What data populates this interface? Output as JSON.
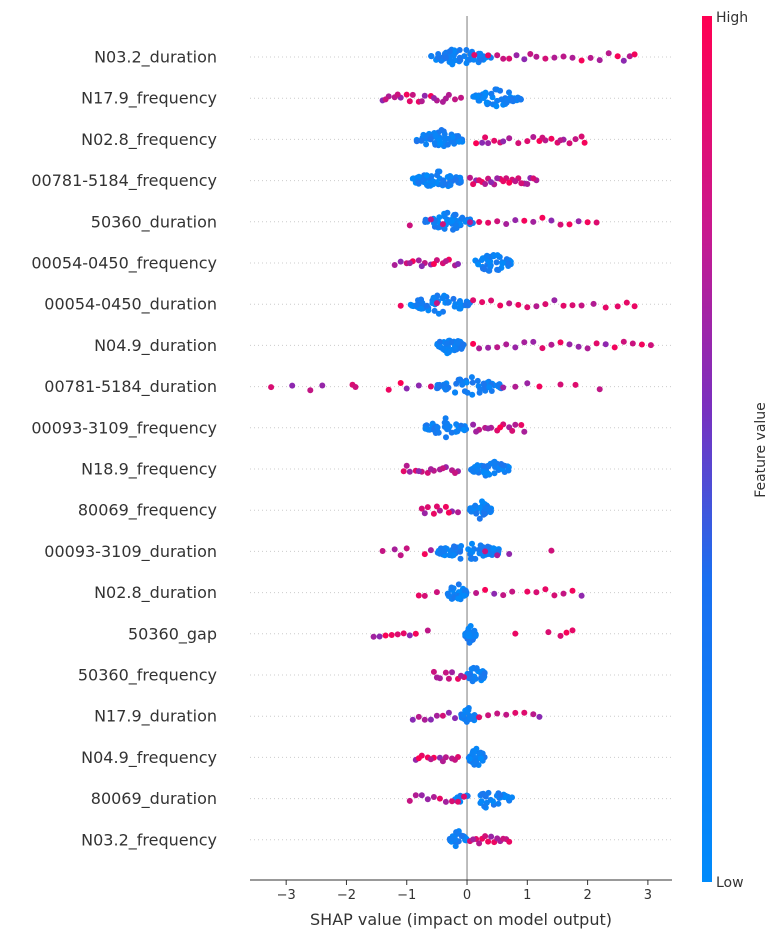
{
  "chart_data": {
    "type": "scatter",
    "subtype": "shap-beeswarm",
    "xlabel": "SHAP value (impact on model output)",
    "xlim": [
      -3.6,
      3.4
    ],
    "xticks": [
      -3,
      -2,
      -1,
      0,
      1,
      2,
      3
    ],
    "xtick_labels": [
      "−3",
      "−2",
      "−1",
      "0",
      "1",
      "2",
      "3"
    ],
    "grid": "horizontal dotted guides per feature",
    "colorbar": {
      "label": "Feature value",
      "high_label": "High",
      "low_label": "Low",
      "high_color": "#ff0052",
      "low_color": "#008bfb",
      "mid_color": "#7b2fbe"
    },
    "features": [
      {
        "name": "N03.2_duration",
        "low": {
          "min": -0.6,
          "max": 0.4,
          "n": 60
        },
        "high": [
          0.12,
          0.35,
          0.5,
          0.6,
          0.7,
          0.82,
          0.95,
          1.05,
          1.15,
          1.3,
          1.45,
          1.6,
          1.75,
          1.9,
          2.05,
          2.2,
          2.35,
          2.5,
          2.6,
          2.7,
          2.78
        ]
      },
      {
        "name": "N17.9_frequency",
        "low": {
          "min": 0.1,
          "max": 0.9,
          "n": 55
        },
        "high": [
          -1.4,
          -1.3,
          -1.2,
          -1.1,
          -1.0,
          -0.9,
          -0.8,
          -0.7,
          -0.6,
          -0.5,
          -0.4,
          -0.3,
          -0.2,
          -0.1,
          -1.35,
          -1.15,
          -0.95,
          -0.75,
          -0.55,
          -0.35
        ]
      },
      {
        "name": "N02.8_frequency",
        "low": {
          "min": -0.85,
          "max": -0.05,
          "n": 55
        },
        "high": [
          0.15,
          0.25,
          0.35,
          0.45,
          0.55,
          0.7,
          0.85,
          1.0,
          1.1,
          1.2,
          1.3,
          1.4,
          1.5,
          1.6,
          1.7,
          1.8,
          1.9,
          1.95,
          0.3,
          0.6,
          1.25,
          1.55
        ]
      },
      {
        "name": "00781-5184_frequency",
        "low": {
          "min": -0.9,
          "max": -0.05,
          "n": 60
        },
        "high": [
          0.05,
          0.15,
          0.25,
          0.35,
          0.45,
          0.55,
          0.65,
          0.75,
          0.85,
          0.95,
          1.05,
          1.15,
          0.1,
          0.3,
          0.5,
          0.7,
          0.9,
          1.1,
          0.2,
          0.4,
          0.6,
          0.8,
          1.0
        ]
      },
      {
        "name": "50360_duration",
        "low": {
          "min": -0.7,
          "max": 0.1,
          "n": 45
        },
        "high": [
          -0.95,
          -0.6,
          -0.4,
          0.05,
          0.2,
          0.35,
          0.5,
          0.65,
          0.8,
          0.95,
          1.1,
          1.25,
          1.4,
          1.55,
          1.7,
          1.85,
          2.0,
          2.15
        ]
      },
      {
        "name": "00054-0450_frequency",
        "low": {
          "min": 0.1,
          "max": 0.75,
          "n": 45
        },
        "high": [
          -1.2,
          -1.1,
          -1.0,
          -0.9,
          -0.8,
          -0.7,
          -0.6,
          -0.5,
          -0.4,
          -0.3,
          -0.2,
          -0.15,
          -0.95,
          -0.75,
          -0.55,
          -0.35
        ]
      },
      {
        "name": "00054-0450_duration",
        "low": {
          "min": -0.95,
          "max": 0.05,
          "n": 55
        },
        "high": [
          -1.1,
          -0.5,
          0.1,
          0.25,
          0.4,
          0.55,
          0.7,
          0.85,
          1.0,
          1.15,
          1.3,
          1.45,
          1.6,
          1.75,
          1.9,
          2.1,
          2.3,
          2.5,
          2.65,
          2.78
        ]
      },
      {
        "name": "N04.9_duration",
        "low": {
          "min": -0.5,
          "max": -0.05,
          "n": 40
        },
        "high": [
          0.1,
          0.2,
          0.35,
          0.5,
          0.65,
          0.8,
          0.95,
          1.1,
          1.25,
          1.4,
          1.55,
          1.7,
          1.85,
          2.0,
          2.15,
          2.3,
          2.45,
          2.6,
          2.75,
          2.9,
          3.05
        ]
      },
      {
        "name": "00781-5184_duration",
        "low": {
          "min": -0.5,
          "max": 0.6,
          "n": 55
        },
        "high": [
          -3.25,
          -2.9,
          -2.6,
          -2.4,
          -1.9,
          -1.85,
          -1.3,
          -1.1,
          -1.0,
          -0.8,
          -0.6,
          0.6,
          0.8,
          1.0,
          1.2,
          1.55,
          1.8,
          2.2
        ]
      },
      {
        "name": "00093-3109_frequency",
        "low": {
          "min": -0.7,
          "max": 0.0,
          "n": 40
        },
        "high": [
          0.1,
          0.2,
          0.3,
          0.4,
          0.5,
          0.6,
          0.7,
          0.8,
          0.9,
          0.95,
          0.15,
          0.35,
          0.55,
          0.75
        ]
      },
      {
        "name": "N18.9_frequency",
        "low": {
          "min": 0.05,
          "max": 0.7,
          "n": 45
        },
        "high": [
          -1.05,
          -0.95,
          -0.85,
          -0.75,
          -0.65,
          -0.55,
          -0.45,
          -0.35,
          -0.25,
          -0.15,
          -1.0,
          -0.8,
          -0.6,
          -0.4,
          -0.2
        ]
      },
      {
        "name": "80069_frequency",
        "low": {
          "min": 0.05,
          "max": 0.4,
          "n": 35
        },
        "high": [
          -0.75,
          -0.65,
          -0.55,
          -0.45,
          -0.35,
          -0.25,
          -0.15,
          -0.7,
          -0.5,
          -0.3
        ]
      },
      {
        "name": "00093-3109_duration",
        "low": {
          "min": -0.5,
          "max": 0.55,
          "n": 65
        },
        "high": [
          -1.4,
          -1.2,
          -1.1,
          -1.0,
          -0.7,
          -0.6,
          0.3,
          0.5,
          0.7,
          1.4
        ]
      },
      {
        "name": "N02.8_duration",
        "low": {
          "min": -0.35,
          "max": 0.0,
          "n": 30
        },
        "high": [
          -0.8,
          -0.7,
          -0.5,
          0.15,
          0.3,
          0.45,
          0.6,
          0.75,
          1.0,
          1.15,
          1.3,
          1.45,
          1.6,
          1.75,
          1.9
        ]
      },
      {
        "name": "50360_gap",
        "low": {
          "min": -0.05,
          "max": 0.15,
          "n": 28
        },
        "high": [
          -1.55,
          -1.45,
          -1.35,
          -1.25,
          -1.15,
          -1.05,
          -0.95,
          -0.85,
          -0.65,
          0.8,
          1.35,
          1.55,
          1.65,
          1.75
        ]
      },
      {
        "name": "50360_frequency",
        "low": {
          "min": 0.0,
          "max": 0.3,
          "n": 30
        },
        "high": [
          -0.55,
          -0.45,
          -0.35,
          -0.25,
          -0.15,
          -0.05,
          -0.5,
          -0.3,
          -0.1
        ]
      },
      {
        "name": "N17.9_duration",
        "low": {
          "min": -0.1,
          "max": 0.15,
          "n": 25
        },
        "high": [
          -0.9,
          -0.8,
          -0.7,
          -0.6,
          -0.5,
          -0.4,
          -0.3,
          -0.2,
          0.2,
          0.35,
          0.5,
          0.65,
          0.8,
          0.95,
          1.1,
          1.2
        ]
      },
      {
        "name": "N04.9_frequency",
        "low": {
          "min": 0.0,
          "max": 0.3,
          "n": 30
        },
        "high": [
          -0.85,
          -0.75,
          -0.65,
          -0.55,
          -0.45,
          -0.35,
          -0.25,
          -0.15,
          -0.8,
          -0.6,
          -0.4,
          -0.2
        ]
      },
      {
        "name": "80069_duration",
        "low": {
          "min": -0.2,
          "max": 0.75,
          "n": 40
        },
        "high": [
          -0.95,
          -0.85,
          -0.75,
          -0.65,
          -0.55,
          -0.45,
          -0.35,
          -0.25,
          -0.15,
          -0.05
        ]
      },
      {
        "name": "N03.2_frequency",
        "low": {
          "min": -0.3,
          "max": 0.0,
          "n": 30
        },
        "high": [
          0.05,
          0.15,
          0.25,
          0.35,
          0.45,
          0.55,
          0.65,
          0.1,
          0.3,
          0.5,
          0.7,
          0.2,
          0.4,
          0.6
        ]
      }
    ]
  }
}
